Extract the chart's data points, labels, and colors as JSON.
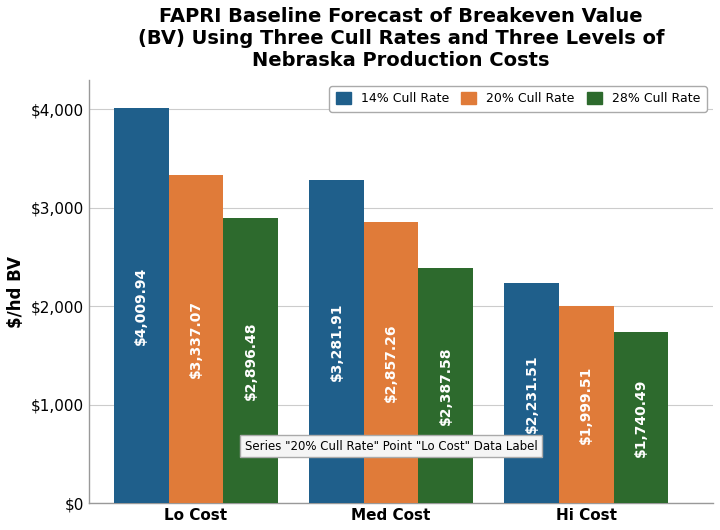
{
  "title": "FAPRI Baseline Forecast of Breakeven Value\n(BV) Using Three Cull Rates and Three Levels of\nNebraska Production Costs",
  "ylabel": "$/hd BV",
  "categories": [
    "Lo Cost",
    "Med Cost",
    "Hi Cost"
  ],
  "series": [
    {
      "label": "14% Cull Rate",
      "color": "#1F5F8B",
      "values": [
        4009.94,
        3281.91,
        2231.51
      ],
      "labels": [
        "$4,009.94",
        "$3,281.91",
        "$2,231.51"
      ]
    },
    {
      "label": "20% Cull Rate",
      "color": "#E07B39",
      "values": [
        3337.07,
        2857.26,
        1999.51
      ],
      "labels": [
        "$3,337.07",
        "$2,857.26",
        "$1,999.51"
      ]
    },
    {
      "label": "28% Cull Rate",
      "color": "#2D6A2D",
      "values": [
        2896.48,
        2387.58,
        1740.49
      ],
      "labels": [
        "$2,896.48",
        "$2,387.58",
        "$1,740.49"
      ]
    }
  ],
  "ylim": [
    0,
    4300
  ],
  "yticks": [
    0,
    1000,
    2000,
    3000,
    4000
  ],
  "ytick_labels": [
    "$0",
    "$1,000",
    "$2,000",
    "$3,000",
    "$4,000"
  ],
  "tooltip_text": "Series \"20% Cull Rate\" Point \"Lo Cost\" Data Label",
  "background_color": "#FFFFFF",
  "plot_bg_color": "#FFFFFF",
  "bar_width": 0.28,
  "title_fontsize": 14,
  "label_fontsize": 10,
  "tick_fontsize": 11
}
